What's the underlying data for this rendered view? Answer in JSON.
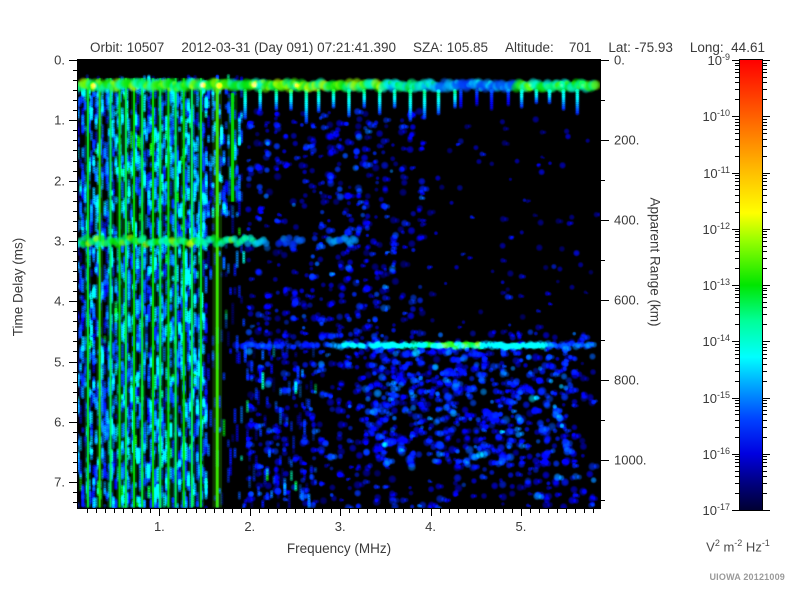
{
  "header": {
    "parts": [
      "Orbit: 10507",
      "2012-03-31 (Day 091) 07:21:41.390",
      "SZA: 105.85",
      "Altitude:    701",
      "Lat: -75.93",
      "Long:  44.61"
    ]
  },
  "footer": {
    "watermark": "UIOWA 20121009"
  },
  "chart_data": {
    "type": "heatmap",
    "subtype": "radar-ionogram-spectrogram",
    "x_axis": {
      "label": "Frequency (MHz)",
      "min": 0.1,
      "max": 5.87,
      "major_ticks": [
        1,
        2,
        3,
        4,
        5
      ],
      "major_labels": [
        "1.",
        "2.",
        "3.",
        "4.",
        "5."
      ],
      "minor_step": 0.1
    },
    "y_axis": {
      "label": "Time Delay (ms)",
      "min": 0,
      "max": 7.43,
      "major_ticks": [
        0,
        1,
        2,
        3,
        4,
        5,
        6,
        7
      ],
      "major_labels": [
        "0.",
        "1.",
        "2.",
        "3.",
        "4.",
        "5.",
        "6.",
        "7."
      ],
      "minor_per_major": 6
    },
    "y2_axis": {
      "label": "Apparent Range (km)",
      "min": 0,
      "max": 1120,
      "major_ticks": [
        0,
        200,
        400,
        600,
        800,
        1000
      ],
      "major_labels": [
        "0.",
        "200.",
        "400.",
        "600.",
        "800.",
        "1000."
      ],
      "minor_ticks": [
        100,
        300,
        500,
        700,
        900,
        1100
      ]
    },
    "colorbar": {
      "exponents": [
        -9,
        -10,
        -11,
        -12,
        -13,
        -14,
        -15,
        -16,
        -17
      ],
      "units_parts": [
        {
          "base": "V",
          "sup": "2"
        },
        {
          "base": " m",
          "sup": "-2"
        },
        {
          "base": " Hz",
          "sup": "-1"
        }
      ]
    },
    "colormap": [
      {
        "pos": 0.0,
        "color": "#000033"
      },
      {
        "pos": 0.06,
        "color": "#000080"
      },
      {
        "pos": 0.125,
        "color": "#0000e0"
      },
      {
        "pos": 0.2,
        "color": "#0040ff"
      },
      {
        "pos": 0.28,
        "color": "#00aaff"
      },
      {
        "pos": 0.34,
        "color": "#00ffff"
      },
      {
        "pos": 0.42,
        "color": "#00ff99"
      },
      {
        "pos": 0.5,
        "color": "#00e600"
      },
      {
        "pos": 0.6,
        "color": "#99ff00"
      },
      {
        "pos": 0.66,
        "color": "#ffff00"
      },
      {
        "pos": 0.75,
        "color": "#ffbf00"
      },
      {
        "pos": 0.875,
        "color": "#ff6000"
      },
      {
        "pos": 1.0,
        "color": "#ff0000"
      }
    ],
    "features": [
      {
        "kind": "dense_stripes",
        "seed": 101,
        "f_min": 0.105,
        "f_max": 1.52,
        "t_min": 0.26,
        "t_max": 7.42,
        "density": 1.0,
        "base_v": 0.17
      },
      {
        "kind": "dense_stripes",
        "seed": 102,
        "f_min": 1.52,
        "f_max": 1.92,
        "t_min": 0.26,
        "t_max": 2.6,
        "density": 0.85,
        "base_v": 0.16
      },
      {
        "kind": "dense_stripes",
        "seed": 103,
        "f_min": 1.52,
        "f_max": 1.95,
        "t_min": 2.6,
        "t_max": 7.42,
        "density": 0.18,
        "base_v": 0.13
      },
      {
        "kind": "dense_stripes",
        "seed": 104,
        "f_min": 1.95,
        "f_max": 2.75,
        "t_min": 4.6,
        "t_max": 7.42,
        "density": 0.22,
        "base_v": 0.12
      },
      {
        "kind": "speckle",
        "seed": 130,
        "f_min": 1.95,
        "f_max": 3.95,
        "t_min": 0.85,
        "t_max": 4.6,
        "count": 420,
        "v_min": 0.09,
        "v_max": 0.27,
        "r_min": 2.2,
        "r_max": 4.6,
        "col_quant": 9
      },
      {
        "kind": "speckle",
        "seed": 131,
        "f_min": 3.95,
        "f_max": 5.85,
        "t_min": 0.85,
        "t_max": 4.5,
        "count": 80,
        "v_min": 0.08,
        "v_max": 0.2,
        "r_min": 2,
        "r_max": 4
      },
      {
        "kind": "speckle",
        "seed": 132,
        "f_min": 1.95,
        "f_max": 5.85,
        "t_min": 4.5,
        "t_max": 7.42,
        "count": 680,
        "v_min": 0.09,
        "v_max": 0.28,
        "r_min": 2.2,
        "r_max": 4.8,
        "col_quant": 9
      },
      {
        "kind": "speckle",
        "seed": 133,
        "f_min": 3.3,
        "f_max": 5.55,
        "t_min": 4.75,
        "t_max": 6.7,
        "count": 340,
        "v_min": 0.12,
        "v_max": 0.33,
        "r_min": 2.5,
        "r_max": 5.2
      },
      {
        "kind": "speckle",
        "seed": 134,
        "f_min": 2.6,
        "f_max": 3.6,
        "t_min": 1.0,
        "t_max": 7.3,
        "count": 120,
        "v_min": 0.1,
        "v_max": 0.26,
        "r_min": 2.2,
        "r_max": 4.4
      },
      {
        "kind": "plasma_lines",
        "lines": [
          {
            "f": 0.21,
            "t0": 0.3,
            "t1": 7.42,
            "v": 0.48,
            "w": 2
          },
          {
            "f": 0.34,
            "t0": 0.3,
            "t1": 7.42,
            "v": 0.52,
            "w": 2
          },
          {
            "f": 0.46,
            "t0": 0.3,
            "t1": 7.42,
            "v": 0.45,
            "w": 2
          },
          {
            "f": 0.56,
            "t0": 0.3,
            "t1": 7.42,
            "v": 0.5,
            "w": 2
          },
          {
            "f": 0.63,
            "t0": 0.3,
            "t1": 7.42,
            "v": 0.46,
            "w": 2
          },
          {
            "f": 0.72,
            "t0": 0.3,
            "t1": 7.42,
            "v": 0.5,
            "w": 2
          },
          {
            "f": 0.81,
            "t0": 0.3,
            "t1": 7.42,
            "v": 0.47,
            "w": 2
          },
          {
            "f": 0.93,
            "t0": 0.3,
            "t1": 7.42,
            "v": 0.5,
            "w": 2
          },
          {
            "f": 1.01,
            "t0": 0.3,
            "t1": 7.42,
            "v": 0.46,
            "w": 2
          },
          {
            "f": 1.1,
            "t0": 0.3,
            "t1": 7.42,
            "v": 0.5,
            "w": 2
          },
          {
            "f": 1.18,
            "t0": 0.3,
            "t1": 7.42,
            "v": 0.46,
            "w": 2
          },
          {
            "f": 1.27,
            "t0": 0.3,
            "t1": 7.42,
            "v": 0.5,
            "w": 2
          },
          {
            "f": 1.36,
            "t0": 0.3,
            "t1": 7.42,
            "v": 0.45,
            "w": 2
          },
          {
            "f": 1.46,
            "t0": 0.3,
            "t1": 7.42,
            "v": 0.48,
            "w": 2
          },
          {
            "f": 1.64,
            "t0": 0.32,
            "t1": 7.42,
            "v": 0.54,
            "w": 3
          },
          {
            "f": 1.81,
            "t0": 0.55,
            "t1": 2.35,
            "v": 0.5,
            "w": 3
          }
        ]
      },
      {
        "kind": "hband",
        "seed": 120,
        "t0": 2.88,
        "t1": 3.12,
        "segments": [
          {
            "f0": 0.105,
            "f1": 1.95,
            "v": 0.5
          },
          {
            "f0": 1.95,
            "f1": 2.2,
            "v": 0.36
          },
          {
            "f0": 2.32,
            "f1": 2.6,
            "v": 0.2
          },
          {
            "f0": 2.88,
            "f1": 3.18,
            "v": 0.26
          }
        ]
      },
      {
        "kind": "trace",
        "seed": 140,
        "t_center": 4.73,
        "segments": [
          {
            "f0": 1.78,
            "f1": 2.9,
            "v": 0.17,
            "gap": 0.45
          },
          {
            "f0": 2.9,
            "f1": 3.5,
            "v": 0.3,
            "gap": 0.1
          },
          {
            "f0": 3.5,
            "f1": 3.95,
            "v": 0.36,
            "gap": 0
          },
          {
            "f0": 3.95,
            "f1": 4.55,
            "v": 0.5,
            "gap": 0
          },
          {
            "f0": 4.55,
            "f1": 5.3,
            "v": 0.33,
            "gap": 0.05
          },
          {
            "f0": 5.3,
            "f1": 5.85,
            "v": 0.22,
            "gap": 0.25
          }
        ]
      },
      {
        "kind": "top_band",
        "seed": 150,
        "t0": 0.22,
        "t1": 0.62,
        "segments": [
          {
            "f0": 0.105,
            "f1": 3.5,
            "v": 0.5
          },
          {
            "f0": 3.5,
            "f1": 4.05,
            "v": 0.4
          },
          {
            "f0": 4.05,
            "f1": 4.95,
            "v": 0.24
          },
          {
            "f0": 4.95,
            "f1": 5.85,
            "v": 0.46
          }
        ],
        "hotspots": [
          {
            "f": 0.27,
            "v": 0.66
          },
          {
            "f": 1.48,
            "v": 0.7
          },
          {
            "f": 1.66,
            "v": 0.68
          },
          {
            "f": 2.05,
            "v": 0.64
          },
          {
            "f": 2.52,
            "v": 0.62
          },
          {
            "f": 5.1,
            "v": 0.5
          },
          {
            "f": 5.45,
            "v": 0.5
          },
          {
            "f": 5.68,
            "v": 0.48
          }
        ],
        "teeth_groups": [
          {
            "f0": 1.95,
            "f1": 4.3,
            "spacing": 0.165,
            "len": 0.38,
            "v": 0.45
          },
          {
            "f0": 4.35,
            "f1": 4.95,
            "spacing": 0.17,
            "len": 0.3,
            "v": 0.2
          },
          {
            "f0": 5.0,
            "f1": 5.8,
            "spacing": 0.16,
            "len": 0.28,
            "v": 0.4
          }
        ]
      }
    ]
  }
}
